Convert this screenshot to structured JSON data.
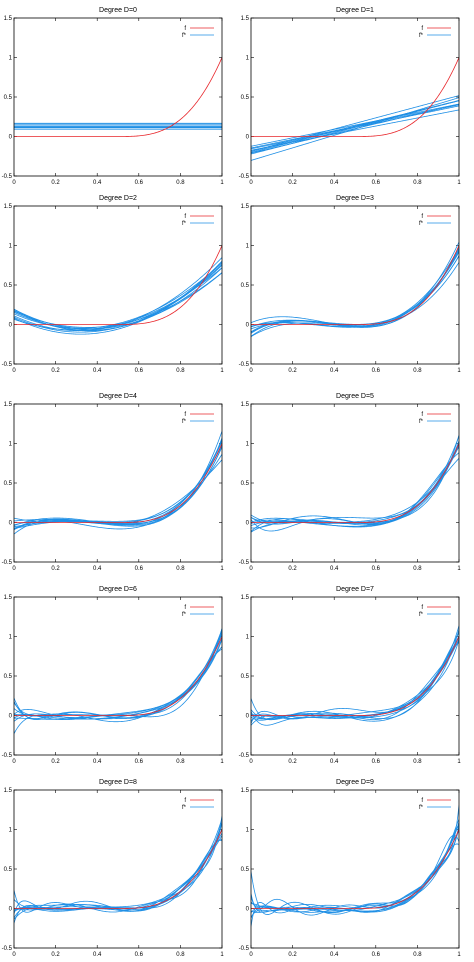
{
  "colors": {
    "f": "#e8262b",
    "f_star": "#1f8fe5",
    "axis": "#000000"
  },
  "legend": {
    "f_label": "f",
    "f_star_label": "f*"
  },
  "chart_data": [
    {
      "type": "line",
      "title": "Degree D=0",
      "xlim": [
        0,
        1
      ],
      "ylim": [
        -0.5,
        1.5
      ],
      "degree": 0,
      "seed": 11,
      "x_ticks": [
        "0",
        "0.2",
        "0.4",
        "0.6",
        "0.8",
        "1"
      ],
      "y_ticks": [
        "-0.5",
        "0",
        "0.5",
        "1",
        "1.5"
      ],
      "series": [
        {
          "name": "f"
        },
        {
          "name": "f*"
        }
      ]
    },
    {
      "type": "line",
      "title": "Degree D=1",
      "xlim": [
        0,
        1
      ],
      "ylim": [
        -0.5,
        1.5
      ],
      "degree": 1,
      "seed": 23,
      "x_ticks": [
        "0",
        "0.2",
        "0.4",
        "0.6",
        "0.8",
        "1"
      ],
      "y_ticks": [
        "-0.5",
        "0",
        "0.5",
        "1",
        "1.5"
      ],
      "series": [
        {
          "name": "f"
        },
        {
          "name": "f*"
        }
      ]
    },
    {
      "type": "line",
      "title": "Degree D=2",
      "xlim": [
        0,
        1
      ],
      "ylim": [
        -0.5,
        1.5
      ],
      "degree": 2,
      "seed": 37,
      "x_ticks": [
        "0",
        "0.2",
        "0.4",
        "0.6",
        "0.8",
        "1"
      ],
      "y_ticks": [
        "-0.5",
        "0",
        "0.5",
        "1",
        "1.5"
      ],
      "series": [
        {
          "name": "f"
        },
        {
          "name": "f*"
        }
      ]
    },
    {
      "type": "line",
      "title": "Degree D=3",
      "xlim": [
        0,
        1
      ],
      "ylim": [
        -0.5,
        1.5
      ],
      "degree": 3,
      "seed": 41,
      "x_ticks": [
        "0",
        "0.2",
        "0.4",
        "0.6",
        "0.8",
        "1"
      ],
      "y_ticks": [
        "-0.5",
        "0",
        "0.5",
        "1",
        "1.5"
      ],
      "series": [
        {
          "name": "f"
        },
        {
          "name": "f*"
        }
      ]
    },
    {
      "type": "line",
      "title": "Degree D=4",
      "xlim": [
        0,
        1
      ],
      "ylim": [
        -0.5,
        1.5
      ],
      "degree": 4,
      "seed": 53,
      "x_ticks": [
        "0",
        "0.2",
        "0.4",
        "0.6",
        "0.8",
        "1"
      ],
      "y_ticks": [
        "-0.5",
        "0",
        "0.5",
        "1",
        "1.5"
      ],
      "series": [
        {
          "name": "f"
        },
        {
          "name": "f*"
        }
      ]
    },
    {
      "type": "line",
      "title": "Degree D=5",
      "xlim": [
        0,
        1
      ],
      "ylim": [
        -0.5,
        1.5
      ],
      "degree": 5,
      "seed": 67,
      "x_ticks": [
        "0",
        "0.2",
        "0.4",
        "0.6",
        "0.8",
        "1"
      ],
      "y_ticks": [
        "-0.5",
        "0",
        "0.5",
        "1",
        "1.5"
      ],
      "series": [
        {
          "name": "f"
        },
        {
          "name": "f*"
        }
      ]
    },
    {
      "type": "line",
      "title": "Degree D=6",
      "xlim": [
        0,
        1
      ],
      "ylim": [
        -0.5,
        1.5
      ],
      "degree": 6,
      "seed": 71,
      "x_ticks": [
        "0",
        "0.2",
        "0.4",
        "0.6",
        "0.8",
        "1"
      ],
      "y_ticks": [
        "-0.5",
        "0",
        "0.5",
        "1",
        "1.5"
      ],
      "series": [
        {
          "name": "f"
        },
        {
          "name": "f*"
        }
      ]
    },
    {
      "type": "line",
      "title": "Degree D=7",
      "xlim": [
        0,
        1
      ],
      "ylim": [
        -0.5,
        1.5
      ],
      "degree": 7,
      "seed": 83,
      "x_ticks": [
        "0",
        "0.2",
        "0.4",
        "0.6",
        "0.8",
        "1"
      ],
      "y_ticks": [
        "-0.5",
        "0",
        "0.5",
        "1",
        "1.5"
      ],
      "series": [
        {
          "name": "f"
        },
        {
          "name": "f*"
        }
      ]
    },
    {
      "type": "line",
      "title": "Degree D=8",
      "xlim": [
        0,
        1
      ],
      "ylim": [
        -0.5,
        1.5
      ],
      "degree": 8,
      "seed": 97,
      "x_ticks": [
        "0",
        "0.2",
        "0.4",
        "0.6",
        "0.8",
        "1"
      ],
      "y_ticks": [
        "-0.5",
        "0",
        "0.5",
        "1",
        "1.5"
      ],
      "series": [
        {
          "name": "f"
        },
        {
          "name": "f*"
        }
      ]
    },
    {
      "type": "line",
      "title": "Degree D=9",
      "xlim": [
        0,
        1
      ],
      "ylim": [
        -0.5,
        1.5
      ],
      "degree": 9,
      "seed": 101,
      "x_ticks": [
        "0",
        "0.2",
        "0.4",
        "0.6",
        "0.8",
        "1"
      ],
      "y_ticks": [
        "-0.5",
        "0",
        "0.5",
        "1",
        "1.5"
      ],
      "series": [
        {
          "name": "f"
        },
        {
          "name": "f*"
        }
      ]
    }
  ]
}
